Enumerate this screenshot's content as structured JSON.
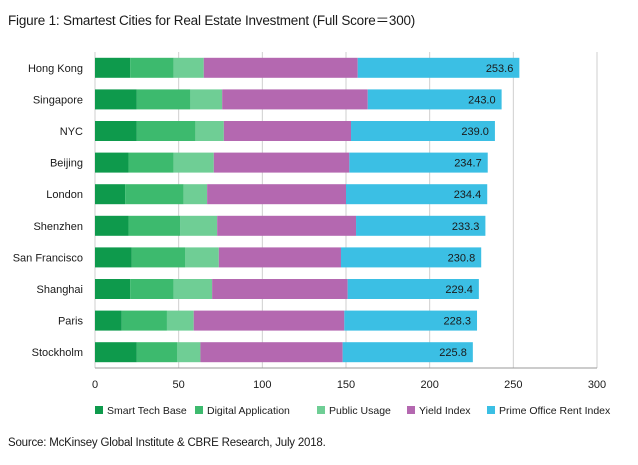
{
  "title": "Figure 1: Smartest Cities for Real Estate Investment (Full Score＝300)",
  "source": "Source: McKinsey Global Institute & CBRE Research, July 2018.",
  "chart_data": {
    "type": "bar",
    "orientation": "horizontal",
    "stacked": true,
    "categories": [
      "Hong Kong",
      "Singapore",
      "NYC",
      "Beijing",
      "London",
      "Shenzhen",
      "San Francisco",
      "Shanghai",
      "Paris",
      "Stockholm"
    ],
    "series": [
      {
        "name": "Smart Tech Base",
        "color": "#0e9a4c",
        "values": [
          21,
          25,
          25,
          20,
          18,
          20,
          22,
          21,
          16,
          25
        ]
      },
      {
        "name": "Digital Application",
        "color": "#3dba6e",
        "values": [
          26,
          32,
          35,
          27,
          35,
          31,
          32,
          26,
          27,
          24
        ]
      },
      {
        "name": "Public Usage",
        "color": "#6fce95",
        "values": [
          18,
          19,
          17,
          24,
          14,
          22,
          20,
          23,
          16,
          14
        ]
      },
      {
        "name": "Yield Index",
        "color": "#b468b0",
        "values": [
          92,
          87,
          76,
          81,
          83,
          83,
          73,
          81,
          90,
          85
        ]
      },
      {
        "name": "Prime Office Rent Index",
        "color": "#3bbfe4",
        "values": [
          96.6,
          80.0,
          86.0,
          82.7,
          84.4,
          77.3,
          83.8,
          78.4,
          79.3,
          77.8
        ]
      }
    ],
    "totals": [
      "253.6",
      "243.0",
      "239.0",
      "234.7",
      "234.4",
      "233.3",
      "230.8",
      "229.4",
      "228.3",
      "225.8"
    ],
    "xlim": [
      0,
      300
    ],
    "xticks": [
      "0",
      "50",
      "100",
      "150",
      "200",
      "250",
      "300"
    ],
    "grid": true,
    "legend_position": "bottom"
  }
}
